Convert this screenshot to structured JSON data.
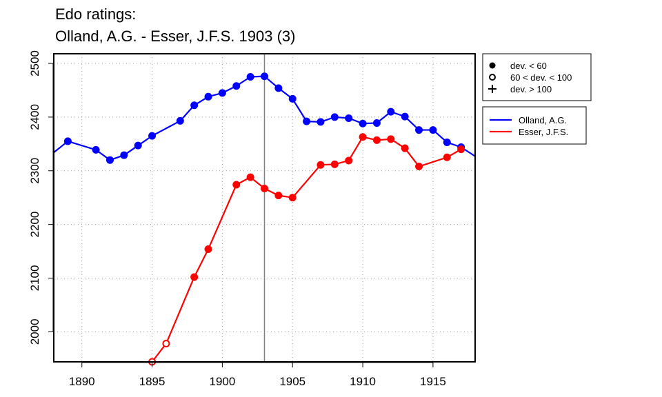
{
  "title_line1": "Edo ratings:",
  "title_line2": "Olland, A.G. - Esser, J.F.S. 1903 (3)",
  "chart_data": {
    "type": "line",
    "xlim": [
      1888,
      1918
    ],
    "ylim": [
      1944,
      2518
    ],
    "x_ticks": [
      "1890",
      "1895",
      "1900",
      "1905",
      "1910",
      "1915"
    ],
    "y_ticks": [
      "2000",
      "2100",
      "2200",
      "2300",
      "2400",
      "2500"
    ],
    "grid": true,
    "vertical_marker_year": 1903,
    "marker_legend": [
      {
        "symbol": "filled-circle",
        "label": "dev. < 60"
      },
      {
        "symbol": "open-circle",
        "label": "60 < dev. < 100"
      },
      {
        "symbol": "plus",
        "label": "dev. > 100"
      }
    ],
    "series": [
      {
        "name": "Olland, A.G.",
        "color": "#0000ff",
        "line_start": {
          "x": 1888,
          "y": 2334
        },
        "line_end": {
          "x": 1918,
          "y": 2327
        },
        "points": [
          {
            "x": 1889,
            "y": 2355,
            "m": "filled"
          },
          {
            "x": 1891,
            "y": 2339,
            "m": "filled"
          },
          {
            "x": 1892,
            "y": 2320,
            "m": "filled"
          },
          {
            "x": 1893,
            "y": 2329,
            "m": "filled"
          },
          {
            "x": 1894,
            "y": 2347,
            "m": "filled"
          },
          {
            "x": 1895,
            "y": 2365,
            "m": "filled"
          },
          {
            "x": 1897,
            "y": 2393,
            "m": "filled"
          },
          {
            "x": 1898,
            "y": 2422,
            "m": "filled"
          },
          {
            "x": 1899,
            "y": 2438,
            "m": "filled"
          },
          {
            "x": 1900,
            "y": 2445,
            "m": "filled"
          },
          {
            "x": 1901,
            "y": 2458,
            "m": "filled"
          },
          {
            "x": 1902,
            "y": 2475,
            "m": "filled"
          },
          {
            "x": 1903,
            "y": 2476,
            "m": "filled"
          },
          {
            "x": 1904,
            "y": 2454,
            "m": "filled"
          },
          {
            "x": 1905,
            "y": 2434,
            "m": "filled"
          },
          {
            "x": 1906,
            "y": 2392,
            "m": "filled"
          },
          {
            "x": 1907,
            "y": 2391,
            "m": "filled"
          },
          {
            "x": 1908,
            "y": 2400,
            "m": "filled"
          },
          {
            "x": 1909,
            "y": 2398,
            "m": "filled"
          },
          {
            "x": 1910,
            "y": 2388,
            "m": "filled"
          },
          {
            "x": 1911,
            "y": 2389,
            "m": "filled"
          },
          {
            "x": 1912,
            "y": 2410,
            "m": "filled"
          },
          {
            "x": 1913,
            "y": 2401,
            "m": "filled"
          },
          {
            "x": 1914,
            "y": 2376,
            "m": "filled"
          },
          {
            "x": 1915,
            "y": 2376,
            "m": "filled"
          },
          {
            "x": 1916,
            "y": 2353,
            "m": "filled"
          },
          {
            "x": 1917,
            "y": 2344,
            "m": "filled"
          }
        ]
      },
      {
        "name": "Esser, J.F.S.",
        "color": "#ff0000",
        "points": [
          {
            "x": 1895,
            "y": 1944,
            "m": "open"
          },
          {
            "x": 1896,
            "y": 1978,
            "m": "open"
          },
          {
            "x": 1898,
            "y": 2102,
            "m": "filled"
          },
          {
            "x": 1899,
            "y": 2154,
            "m": "filled"
          },
          {
            "x": 1901,
            "y": 2274,
            "m": "filled"
          },
          {
            "x": 1902,
            "y": 2288,
            "m": "filled"
          },
          {
            "x": 1903,
            "y": 2267,
            "m": "filled"
          },
          {
            "x": 1904,
            "y": 2254,
            "m": "filled"
          },
          {
            "x": 1905,
            "y": 2250,
            "m": "filled"
          },
          {
            "x": 1907,
            "y": 2311,
            "m": "filled"
          },
          {
            "x": 1908,
            "y": 2312,
            "m": "filled"
          },
          {
            "x": 1909,
            "y": 2319,
            "m": "filled"
          },
          {
            "x": 1910,
            "y": 2363,
            "m": "filled"
          },
          {
            "x": 1911,
            "y": 2357,
            "m": "filled"
          },
          {
            "x": 1912,
            "y": 2359,
            "m": "filled"
          },
          {
            "x": 1913,
            "y": 2342,
            "m": "filled"
          },
          {
            "x": 1914,
            "y": 2308,
            "m": "filled"
          },
          {
            "x": 1916,
            "y": 2325,
            "m": "filled"
          },
          {
            "x": 1917,
            "y": 2340,
            "m": "filled"
          }
        ]
      }
    ]
  }
}
